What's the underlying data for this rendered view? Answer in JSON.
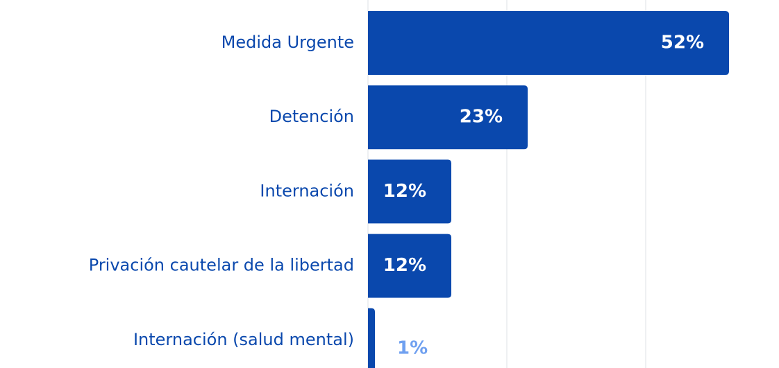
{
  "chart_data": {
    "type": "barh",
    "categories": [
      "Medida Urgente",
      "Detención",
      "Internación",
      "Privación cautelar de la libertad",
      "Internación (salud mental)"
    ],
    "values": [
      52,
      23,
      12,
      12,
      1
    ],
    "value_labels": [
      "52%",
      "23%",
      "12%",
      "12%",
      "1%"
    ],
    "color": "#0a48ad",
    "xlim": [
      0,
      59.2
    ],
    "xticks": [
      0,
      20,
      40
    ],
    "grid": true
  }
}
